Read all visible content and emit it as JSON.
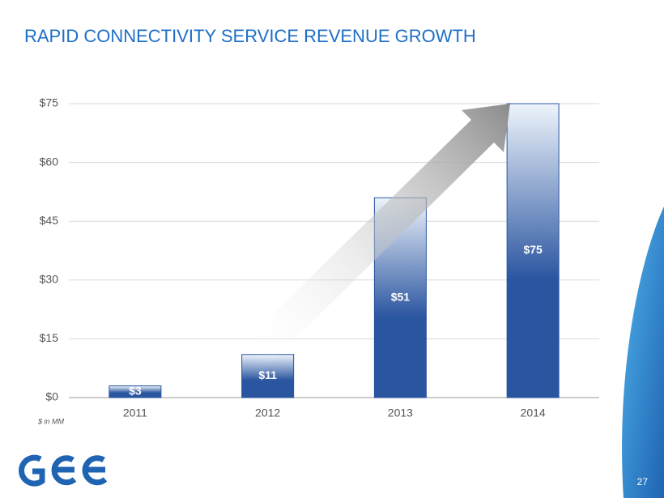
{
  "chart_data": {
    "type": "bar",
    "title": "RAPID CONNECTIVITY  SERVICE REVENUE GROWTH",
    "categories": [
      "2011",
      "2012",
      "2013",
      "2014"
    ],
    "values": [
      3,
      11,
      51,
      75
    ],
    "value_labels": [
      "$3",
      "$11",
      "$51",
      "$75"
    ],
    "color": "#2a55a0",
    "ylim": [
      0,
      75
    ],
    "yticks": [
      {
        "value": 0,
        "label": "$0"
      },
      {
        "value": 15,
        "label": "$15"
      },
      {
        "value": 30,
        "label": "$30"
      },
      {
        "value": 45,
        "label": "$45"
      },
      {
        "value": 60,
        "label": "$60"
      },
      {
        "value": 75,
        "label": "$75"
      }
    ],
    "grid": true,
    "annotation": "$ in MM"
  },
  "slide_number": "27"
}
